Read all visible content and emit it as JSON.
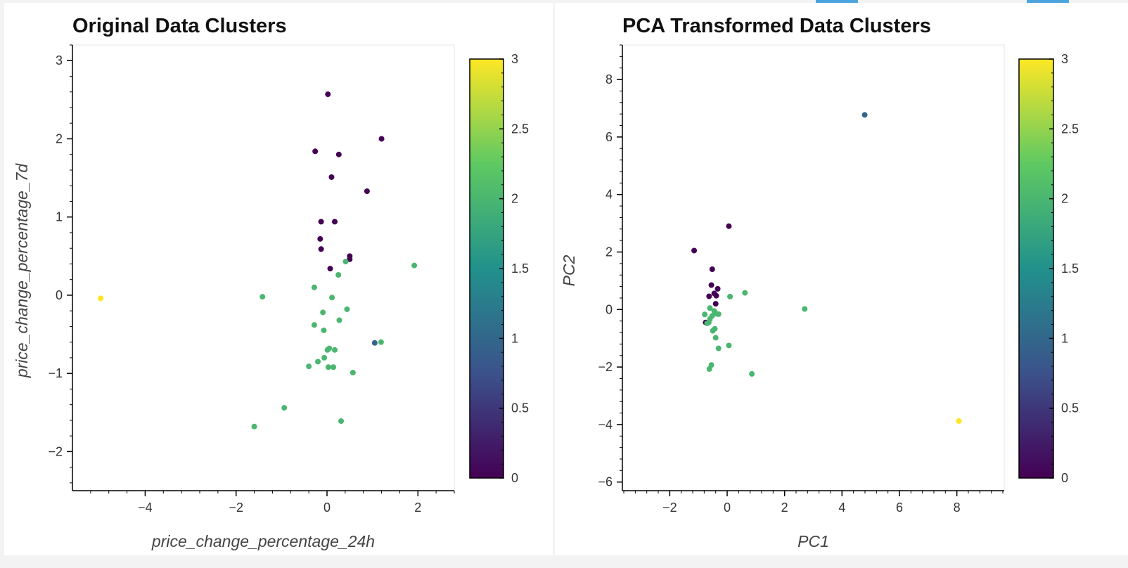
{
  "colorbar_colors": [
    "#440154",
    "#3b528b",
    "#21918c",
    "#5ec962",
    "#fde725"
  ],
  "accent_color": "#4aa3df",
  "chart_data": [
    {
      "type": "scatter",
      "title": "Original Data Clusters",
      "xlabel": "price_change_percentage_24h",
      "ylabel": "price_change_percentage_7d",
      "xlim": [
        -5.6,
        2.8
      ],
      "ylim": [
        -2.5,
        3.2
      ],
      "xticks": [
        -4,
        -2,
        0,
        2
      ],
      "yticks": [
        -2,
        -1,
        0,
        1,
        2,
        3
      ],
      "tick_labels": {
        "x": [
          "−4",
          "−2",
          "0",
          "2"
        ],
        "y": [
          "−2",
          "−1",
          "0",
          "1",
          "2",
          "3"
        ]
      },
      "colorbar": {
        "range": [
          0,
          3
        ],
        "ticks": [
          "0",
          "0.5",
          "1",
          "1.5",
          "2",
          "2.5",
          "3"
        ]
      },
      "grid": false,
      "points": [
        {
          "x": 0.02,
          "y": 2.57,
          "cluster": 0
        },
        {
          "x": 1.2,
          "y": 2.0,
          "cluster": 0
        },
        {
          "x": -0.26,
          "y": 1.84,
          "cluster": 0
        },
        {
          "x": 0.26,
          "y": 1.8,
          "cluster": 0
        },
        {
          "x": 0.1,
          "y": 1.51,
          "cluster": 0
        },
        {
          "x": 0.88,
          "y": 1.33,
          "cluster": 0
        },
        {
          "x": -0.13,
          "y": 0.94,
          "cluster": 0
        },
        {
          "x": 0.17,
          "y": 0.94,
          "cluster": 0
        },
        {
          "x": -0.15,
          "y": 0.72,
          "cluster": 0
        },
        {
          "x": -0.13,
          "y": 0.59,
          "cluster": 0
        },
        {
          "x": 0.5,
          "y": 0.5,
          "cluster": 0
        },
        {
          "x": 0.5,
          "y": 0.46,
          "cluster": 0
        },
        {
          "x": 0.07,
          "y": 0.34,
          "cluster": 0
        },
        {
          "x": -4.98,
          "y": -0.04,
          "cluster": 3
        },
        {
          "x": 1.05,
          "y": -0.61,
          "cluster": 1
        },
        {
          "x": 0.41,
          "y": 0.43,
          "cluster": 2
        },
        {
          "x": 1.92,
          "y": 0.38,
          "cluster": 2
        },
        {
          "x": 0.25,
          "y": 0.26,
          "cluster": 2
        },
        {
          "x": -1.42,
          "y": -0.02,
          "cluster": 2
        },
        {
          "x": -0.28,
          "y": 0.1,
          "cluster": 2
        },
        {
          "x": 0.11,
          "y": -0.03,
          "cluster": 2
        },
        {
          "x": -0.09,
          "y": -0.22,
          "cluster": 2
        },
        {
          "x": 0.44,
          "y": -0.18,
          "cluster": 2
        },
        {
          "x": 0.27,
          "y": -0.32,
          "cluster": 2
        },
        {
          "x": -0.28,
          "y": -0.38,
          "cluster": 2
        },
        {
          "x": -0.07,
          "y": -0.45,
          "cluster": 2
        },
        {
          "x": 1.19,
          "y": -0.6,
          "cluster": 2
        },
        {
          "x": 0.05,
          "y": -0.68,
          "cluster": 2
        },
        {
          "x": 0.01,
          "y": -0.7,
          "cluster": 2
        },
        {
          "x": 0.17,
          "y": -0.7,
          "cluster": 2
        },
        {
          "x": -0.06,
          "y": -0.8,
          "cluster": 2
        },
        {
          "x": -0.2,
          "y": -0.85,
          "cluster": 2
        },
        {
          "x": -0.4,
          "y": -0.91,
          "cluster": 2
        },
        {
          "x": 0.03,
          "y": -0.92,
          "cluster": 2
        },
        {
          "x": 0.14,
          "y": -0.92,
          "cluster": 2
        },
        {
          "x": 0.57,
          "y": -0.99,
          "cluster": 2
        },
        {
          "x": -0.94,
          "y": -1.44,
          "cluster": 2
        },
        {
          "x": 0.31,
          "y": -1.61,
          "cluster": 2
        },
        {
          "x": -1.6,
          "y": -1.68,
          "cluster": 2
        }
      ]
    },
    {
      "type": "scatter",
      "title": "PCA Transformed Data Clusters",
      "xlabel": "PC1",
      "ylabel": "PC2",
      "xlim": [
        -3.65,
        9.65
      ],
      "ylim": [
        -6.3,
        9.2
      ],
      "xticks": [
        -2,
        0,
        2,
        4,
        6,
        8
      ],
      "yticks": [
        -6,
        -4,
        -2,
        0,
        2,
        4,
        6,
        8
      ],
      "tick_labels": {
        "x": [
          "−2",
          "0",
          "2",
          "4",
          "6",
          "8"
        ],
        "y": [
          "−6",
          "−4",
          "−2",
          "0",
          "2",
          "4",
          "6",
          "8"
        ]
      },
      "colorbar": {
        "range": [
          0,
          3
        ],
        "ticks": [
          "0",
          "0.5",
          "1",
          "1.5",
          "2",
          "2.5",
          "3"
        ]
      },
      "grid": false,
      "points": [
        {
          "x": 4.79,
          "y": 6.77,
          "cluster": 1
        },
        {
          "x": 8.07,
          "y": -3.88,
          "cluster": 3
        },
        {
          "x": 0.06,
          "y": 2.9,
          "cluster": 0
        },
        {
          "x": -1.15,
          "y": 2.05,
          "cluster": 0
        },
        {
          "x": -0.52,
          "y": 1.4,
          "cluster": 0
        },
        {
          "x": -0.55,
          "y": 0.85,
          "cluster": 0
        },
        {
          "x": -0.33,
          "y": 0.72,
          "cluster": 0
        },
        {
          "x": -0.45,
          "y": 0.56,
          "cluster": 0
        },
        {
          "x": -0.63,
          "y": 0.46,
          "cluster": 0
        },
        {
          "x": -0.38,
          "y": 0.48,
          "cluster": 0
        },
        {
          "x": -0.4,
          "y": 0.2,
          "cluster": 0
        },
        {
          "x": -0.75,
          "y": -0.45,
          "cluster": 0
        },
        {
          "x": 0.62,
          "y": 0.58,
          "cluster": 2
        },
        {
          "x": 0.1,
          "y": 0.45,
          "cluster": 2
        },
        {
          "x": 2.7,
          "y": 0.02,
          "cluster": 2
        },
        {
          "x": -0.6,
          "y": 0.05,
          "cluster": 2
        },
        {
          "x": -0.45,
          "y": -0.05,
          "cluster": 2
        },
        {
          "x": -0.78,
          "y": -0.17,
          "cluster": 2
        },
        {
          "x": -0.36,
          "y": -0.15,
          "cluster": 2
        },
        {
          "x": -0.3,
          "y": -0.16,
          "cluster": 2
        },
        {
          "x": -0.52,
          "y": -0.22,
          "cluster": 2
        },
        {
          "x": -0.6,
          "y": -0.33,
          "cluster": 2
        },
        {
          "x": -0.64,
          "y": -0.45,
          "cluster": 2
        },
        {
          "x": -0.7,
          "y": -0.48,
          "cluster": 2
        },
        {
          "x": -0.43,
          "y": -0.67,
          "cluster": 2
        },
        {
          "x": -0.5,
          "y": -0.74,
          "cluster": 2
        },
        {
          "x": -0.4,
          "y": -0.98,
          "cluster": 2
        },
        {
          "x": 0.06,
          "y": -1.25,
          "cluster": 2
        },
        {
          "x": -0.3,
          "y": -1.35,
          "cluster": 2
        },
        {
          "x": -0.55,
          "y": -1.93,
          "cluster": 2
        },
        {
          "x": -0.62,
          "y": -2.07,
          "cluster": 2
        },
        {
          "x": 0.86,
          "y": -2.24,
          "cluster": 2
        }
      ]
    }
  ]
}
